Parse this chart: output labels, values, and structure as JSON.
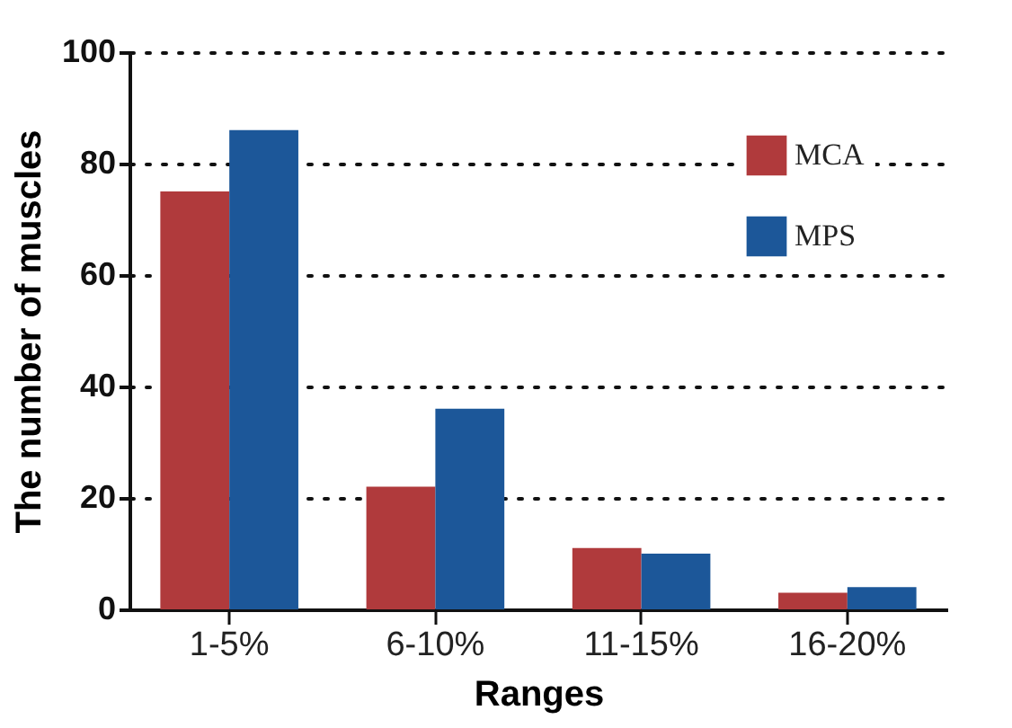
{
  "chart_data": {
    "type": "bar",
    "xlabel": "Ranges",
    "ylabel": "The number of muscles",
    "categories": [
      "1-5%",
      "6-10%",
      "11-15%",
      "16-20%"
    ],
    "series": [
      {
        "name": "MCA",
        "color": "#b03a3c",
        "values": [
          75,
          22,
          11,
          3
        ]
      },
      {
        "name": "MPS",
        "color": "#1c5799",
        "values": [
          86,
          36,
          10,
          4
        ]
      }
    ],
    "ylim": [
      0,
      100
    ],
    "yticks": [
      0,
      20,
      40,
      60,
      80,
      100
    ],
    "grid": "y",
    "legend": "top right"
  }
}
